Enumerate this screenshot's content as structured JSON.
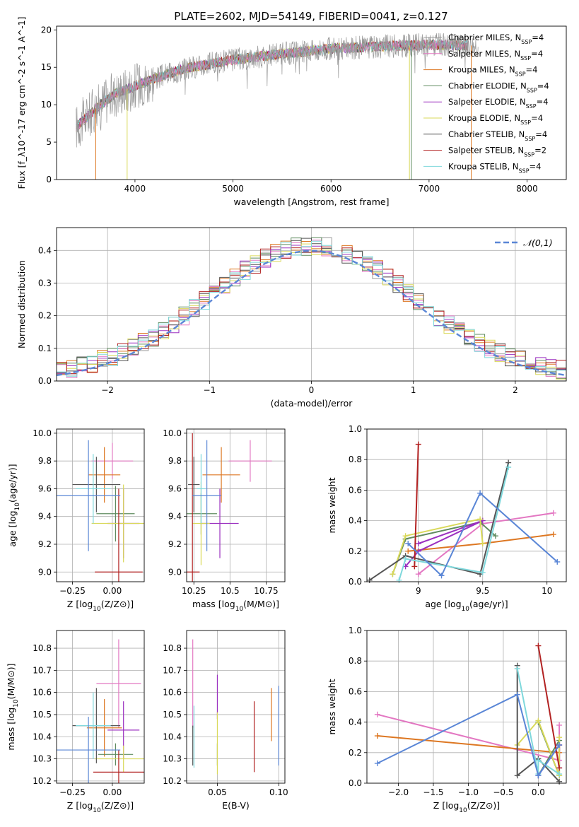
{
  "figure_title": "PLATE=2602, MJD=54149, FIBERID=0041, z=0.127",
  "colors": {
    "Chabrier MILES": "#999999",
    "Salpeter MILES": "#e377c2",
    "Kroupa MILES": "#dd7722",
    "Chabrier ELODIE": "#5f8b5f",
    "Salpeter ELODIE": "#9b30c0",
    "Kroupa ELODIE": "#d9d95a",
    "Chabrier STELIB": "#555555",
    "Salpeter STELIB": "#b22222",
    "Kroupa STELIB": "#7fd8dc",
    "blue_model": "#5a86d6",
    "normal_curve": "#5a86d6"
  },
  "chart_data": [
    {
      "id": "spectrum",
      "type": "line",
      "title": "PLATE=2602, MJD=54149, FIBERID=0041, z=0.127",
      "xlabel": "wavelength [Angstrom, rest frame]",
      "ylabel": "Flux [f_λ10^-17 erg cm^-2 s^-1 A^-1]",
      "xlim": [
        3200,
        8400
      ],
      "ylim": [
        0,
        20.5
      ],
      "xticks": [
        4000,
        5000,
        6000,
        7000,
        8000
      ],
      "yticks": [
        0,
        5,
        10,
        15,
        20
      ],
      "legend": [
        {
          "pre": "Chabrier MILES, N",
          "sub": "SSP",
          "post": "=4"
        },
        {
          "pre": "Salpeter MILES, N",
          "sub": "SSP",
          "post": "=4"
        },
        {
          "pre": "Kroupa MILES, N",
          "sub": "SSP",
          "post": "=4"
        },
        {
          "pre": "Chabrier ELODIE, N",
          "sub": "SSP",
          "post": "=4"
        },
        {
          "pre": "Salpeter ELODIE, N",
          "sub": "SSP",
          "post": "=4"
        },
        {
          "pre": "Kroupa ELODIE, N",
          "sub": "SSP",
          "post": "=4"
        },
        {
          "pre": "Chabrier STELIB, N",
          "sub": "SSP",
          "post": "=4"
        },
        {
          "pre": "Salpeter STELIB, N",
          "sub": "SSP",
          "post": "=2"
        },
        {
          "pre": "Kroupa STELIB, N",
          "sub": "SSP",
          "post": "=4"
        }
      ],
      "legend_location": "right",
      "continuum": {
        "x": [
          3400,
          3600,
          3800,
          4000,
          4200,
          4500,
          5000,
          5500,
          6000,
          6500,
          7000,
          7500
        ],
        "y": [
          7.0,
          9.5,
          11.5,
          12.5,
          13.5,
          14.8,
          16.0,
          16.8,
          17.5,
          17.8,
          18.0,
          17.9
        ]
      }
    },
    {
      "id": "residuals",
      "type": "histogram",
      "xlabel": "(data-model)/error",
      "ylabel": "Normed distribution",
      "xlim": [
        -2.5,
        2.5
      ],
      "ylim": [
        0,
        0.47
      ],
      "xticks": [
        -2,
        -1,
        0,
        1,
        2
      ],
      "yticks": [
        0.0,
        0.1,
        0.2,
        0.3,
        0.4
      ],
      "legend": [
        "𝒩(0,1)"
      ],
      "legend_location": "top-right",
      "grid": true
    },
    {
      "id": "age_vs_Z",
      "type": "errorbar",
      "xlabel": "Z [log10(Z/Z⊙)]",
      "ylabel": "age  [log10(age/yr)]",
      "xlim": [
        -0.35,
        0.2
      ],
      "ylim": [
        8.93,
        10.03
      ],
      "xticks": [
        -0.25,
        0.0
      ],
      "xticklabels": [
        "−0.25",
        "0.00"
      ],
      "yticks": [
        9.0,
        9.2,
        9.4,
        9.6,
        9.8,
        10.0
      ],
      "grid": true,
      "points": [
        {
          "s": "Salpeter MILES",
          "x": 0.0,
          "xe": 0.13,
          "y": 9.8,
          "ye": 0.13
        },
        {
          "s": "Kroupa MILES",
          "x": -0.05,
          "xe": 0.1,
          "y": 9.7,
          "ye": 0.2
        },
        {
          "s": "Chabrier ELODIE",
          "x": 0.02,
          "xe": 0.12,
          "y": 9.42,
          "ye": 0.2
        },
        {
          "s": "Salpeter ELODIE",
          "x": 0.07,
          "xe": 0.1,
          "y": 9.35,
          "ye": 0.25
        },
        {
          "s": "Kroupa ELODIE",
          "x": 0.07,
          "xe": 0.2,
          "y": 9.35,
          "ye": 0.28
        },
        {
          "s": "Chabrier STELIB",
          "x": -0.1,
          "xe": 0.15,
          "y": 9.63,
          "ye": 0.2
        },
        {
          "s": "Salpeter STELIB",
          "x": 0.04,
          "xe": 0.15,
          "y": 9.0,
          "ye": 0.6
        },
        {
          "s": "Kroupa STELIB",
          "x": -0.12,
          "xe": 0.11,
          "y": 9.6,
          "ye": 0.25
        },
        {
          "s": "blue_model",
          "x": -0.15,
          "xe": 0.2,
          "y": 9.55,
          "ye": 0.4
        }
      ]
    },
    {
      "id": "age_vs_mass",
      "type": "errorbar",
      "xlabel": "mass [log10(M/M⊙)]",
      "xlim": [
        10.2,
        10.88
      ],
      "ylim": [
        8.93,
        10.03
      ],
      "xticks": [
        10.25,
        10.5,
        10.75
      ],
      "yticks": [
        9.0,
        9.2,
        9.4,
        9.6,
        9.8,
        10.0
      ],
      "grid": true,
      "points": [
        {
          "s": "Salpeter MILES",
          "x": 10.64,
          "xe": 0.15,
          "y": 9.8,
          "ye": 0.15
        },
        {
          "s": "Kroupa MILES",
          "x": 10.44,
          "xe": 0.13,
          "y": 9.7,
          "ye": 0.2
        },
        {
          "s": "Chabrier ELODIE",
          "x": 10.3,
          "xe": 0.11,
          "y": 9.42,
          "ye": 0.15
        },
        {
          "s": "Salpeter ELODIE",
          "x": 10.43,
          "xe": 0.13,
          "y": 9.35,
          "ye": 0.25
        },
        {
          "s": "Kroupa ELODIE",
          "x": 10.3,
          "xe": 0.06,
          "y": 9.35,
          "ye": 0.3
        },
        {
          "s": "Chabrier STELIB",
          "x": 10.25,
          "xe": 0.04,
          "y": 9.63,
          "ye": 0.2
        },
        {
          "s": "Salpeter STELIB",
          "x": 10.24,
          "xe": 0.05,
          "y": 9.0,
          "ye": 1.0
        },
        {
          "s": "Kroupa STELIB",
          "x": 10.3,
          "xe": 0.03,
          "y": 9.6,
          "ye": 0.25
        },
        {
          "s": "blue_model",
          "x": 10.34,
          "xe": 0.1,
          "y": 9.55,
          "ye": 0.4
        }
      ]
    },
    {
      "id": "weight_vs_age",
      "type": "line",
      "xlabel": "age  [log10(age/yr)]",
      "ylabel": "mass weight",
      "xlim": [
        8.6,
        10.15
      ],
      "ylim": [
        0.0,
        1.0
      ],
      "xticks": [
        9.0,
        9.5,
        10.0
      ],
      "yticks": [
        0.0,
        0.2,
        0.4,
        0.6,
        0.8,
        1.0
      ],
      "grid": true,
      "series": [
        {
          "s": "Salpeter MILES",
          "x": [
            9.0,
            9.5,
            10.05
          ],
          "y": [
            0.05,
            0.38,
            0.45
          ]
        },
        {
          "s": "Kroupa MILES",
          "x": [
            8.92,
            9.5,
            10.05
          ],
          "y": [
            0.2,
            0.25,
            0.31
          ]
        },
        {
          "s": "Chabrier ELODIE",
          "x": [
            8.8,
            8.9,
            9.48,
            9.6
          ],
          "y": [
            0.05,
            0.28,
            0.39,
            0.3
          ]
        },
        {
          "s": "Salpeter ELODIE",
          "x": [
            8.9,
            9.0,
            9.5,
            9.0
          ],
          "y": [
            0.1,
            0.2,
            0.4,
            0.25
          ]
        },
        {
          "s": "Kroupa ELODIE",
          "x": [
            8.8,
            8.9,
            9.48,
            9.5
          ],
          "y": [
            0.05,
            0.3,
            0.41,
            0.25
          ]
        },
        {
          "s": "Chabrier STELIB",
          "x": [
            8.62,
            8.9,
            9.48,
            9.7
          ],
          "y": [
            0.01,
            0.17,
            0.05,
            0.78
          ]
        },
        {
          "s": "Salpeter STELIB",
          "x": [
            8.97,
            9.0
          ],
          "y": [
            0.1,
            0.9
          ]
        },
        {
          "s": "Kroupa STELIB",
          "x": [
            8.85,
            8.9,
            9.5,
            9.7
          ],
          "y": [
            0.01,
            0.15,
            0.06,
            0.75
          ]
        },
        {
          "s": "blue_model",
          "x": [
            8.92,
            9.18,
            9.48,
            10.08
          ],
          "y": [
            0.25,
            0.04,
            0.58,
            0.13
          ]
        }
      ]
    },
    {
      "id": "mass_vs_Z",
      "type": "errorbar",
      "xlabel": "Z [log10(Z/Z⊙)]",
      "ylabel": "mass [log10(M/M⊙)]",
      "xlim": [
        -0.35,
        0.2
      ],
      "ylim": [
        10.19,
        10.88
      ],
      "xticks": [
        -0.25,
        0.0
      ],
      "xticklabels": [
        "−0.25",
        "0.00"
      ],
      "yticks": [
        10.2,
        10.3,
        10.4,
        10.5,
        10.6,
        10.7,
        10.8
      ],
      "grid": true,
      "points": [
        {
          "s": "Salpeter MILES",
          "x": 0.04,
          "xe": 0.14,
          "y": 10.64,
          "ye": 0.2
        },
        {
          "s": "Kroupa MILES",
          "x": -0.05,
          "xe": 0.11,
          "y": 10.44,
          "ye": 0.13
        },
        {
          "s": "Chabrier ELODIE",
          "x": 0.02,
          "xe": 0.11,
          "y": 10.32,
          "ye": 0.05
        },
        {
          "s": "Salpeter ELODIE",
          "x": 0.07,
          "xe": 0.1,
          "y": 10.43,
          "ye": 0.13
        },
        {
          "s": "Kroupa ELODIE",
          "x": 0.07,
          "xe": 0.18,
          "y": 10.3,
          "ye": 0.06
        },
        {
          "s": "Chabrier STELIB",
          "x": -0.1,
          "xe": 0.15,
          "y": 10.45,
          "ye": 0.17
        },
        {
          "s": "Salpeter STELIB",
          "x": 0.04,
          "xe": 0.16,
          "y": 10.24,
          "ye": 0.1
        },
        {
          "s": "Kroupa STELIB",
          "x": -0.12,
          "xe": 0.11,
          "y": 10.45,
          "ye": 0.15
        },
        {
          "s": "blue_model",
          "x": -0.15,
          "xe": 0.2,
          "y": 10.34,
          "ye": 0.15
        }
      ]
    },
    {
      "id": "mass_vs_EBV",
      "type": "errorbar",
      "xlabel": "E(B-V)",
      "xlim": [
        0.025,
        0.105
      ],
      "ylim": [
        10.19,
        10.88
      ],
      "xticks": [
        0.05,
        0.1
      ],
      "xticklabels": [
        "0.05",
        "0.10"
      ],
      "yticks": [
        10.2,
        10.3,
        10.4,
        10.5,
        10.6,
        10.7,
        10.8
      ],
      "grid": true,
      "points": [
        {
          "s": "Salpeter MILES",
          "x": 0.03,
          "xe": 0.0,
          "y": 10.64,
          "ye": 0.2
        },
        {
          "s": "Kroupa MILES",
          "x": 0.094,
          "xe": 0.0,
          "y": 10.5,
          "ye": 0.12
        },
        {
          "s": "Chabrier ELODIE",
          "x": 0.05,
          "xe": 0.0,
          "y": 10.32,
          "ye": 0.05
        },
        {
          "s": "Salpeter ELODIE",
          "x": 0.05,
          "xe": 0.0,
          "y": 10.58,
          "ye": 0.1
        },
        {
          "s": "Kroupa ELODIE",
          "x": 0.05,
          "xe": 0.0,
          "y": 10.37,
          "ye": 0.14
        },
        {
          "s": "Chabrier STELIB",
          "x": 0.03,
          "xe": 0.0,
          "y": 10.36,
          "ye": 0.09
        },
        {
          "s": "Salpeter STELIB",
          "x": 0.08,
          "xe": 0.0,
          "y": 10.4,
          "ye": 0.16
        },
        {
          "s": "Kroupa STELIB",
          "x": 0.031,
          "xe": 0.0,
          "y": 10.4,
          "ye": 0.14
        },
        {
          "s": "blue_model",
          "x": 0.1,
          "xe": 0.0,
          "y": 10.45,
          "ye": 0.18
        }
      ]
    },
    {
      "id": "weight_vs_Z",
      "type": "line",
      "xlabel": "Z [log10(Z/Z⊙)]",
      "ylabel": "mass weight",
      "xlim": [
        -2.45,
        0.4
      ],
      "ylim": [
        0.0,
        1.0
      ],
      "xticks": [
        -2.0,
        -1.5,
        -1.0,
        -0.5,
        0.0
      ],
      "xticklabels": [
        "−2.0",
        "−1.5",
        "−1.0",
        "−0.5",
        "0.0"
      ],
      "yticks": [
        0.0,
        0.2,
        0.4,
        0.6,
        0.8,
        1.0
      ],
      "grid": true,
      "series": [
        {
          "s": "Salpeter MILES",
          "x": [
            -2.3,
            0.3,
            0.3
          ],
          "y": [
            0.45,
            0.15,
            0.38
          ]
        },
        {
          "s": "Kroupa MILES",
          "x": [
            -2.3,
            0.3,
            0.3
          ],
          "y": [
            0.31,
            0.2,
            0.25
          ]
        },
        {
          "s": "Chabrier ELODIE",
          "x": [
            0.0,
            0.3,
            0.3,
            0.0
          ],
          "y": [
            0.4,
            0.05,
            0.28,
            0.05
          ]
        },
        {
          "s": "Salpeter ELODIE",
          "x": [
            0.0,
            0.3,
            0.3
          ],
          "y": [
            0.05,
            0.25,
            0.1
          ]
        },
        {
          "s": "Kroupa ELODIE",
          "x": [
            -0.3,
            0.0,
            0.3,
            0.3
          ],
          "y": [
            0.25,
            0.41,
            0.05,
            0.3
          ]
        },
        {
          "s": "Chabrier STELIB",
          "x": [
            -0.3,
            -0.3,
            0.0,
            0.3
          ],
          "y": [
            0.77,
            0.05,
            0.16,
            0.01
          ]
        },
        {
          "s": "Salpeter STELIB",
          "x": [
            0.0,
            0.3
          ],
          "y": [
            0.9,
            0.1
          ]
        },
        {
          "s": "Kroupa STELIB",
          "x": [
            -0.3,
            0.0,
            0.0,
            0.3
          ],
          "y": [
            0.75,
            0.06,
            0.15,
            0.06
          ]
        },
        {
          "s": "blue_model",
          "x": [
            -2.3,
            -0.3,
            0.0,
            0.3
          ],
          "y": [
            0.13,
            0.58,
            0.05,
            0.25
          ]
        }
      ]
    }
  ]
}
